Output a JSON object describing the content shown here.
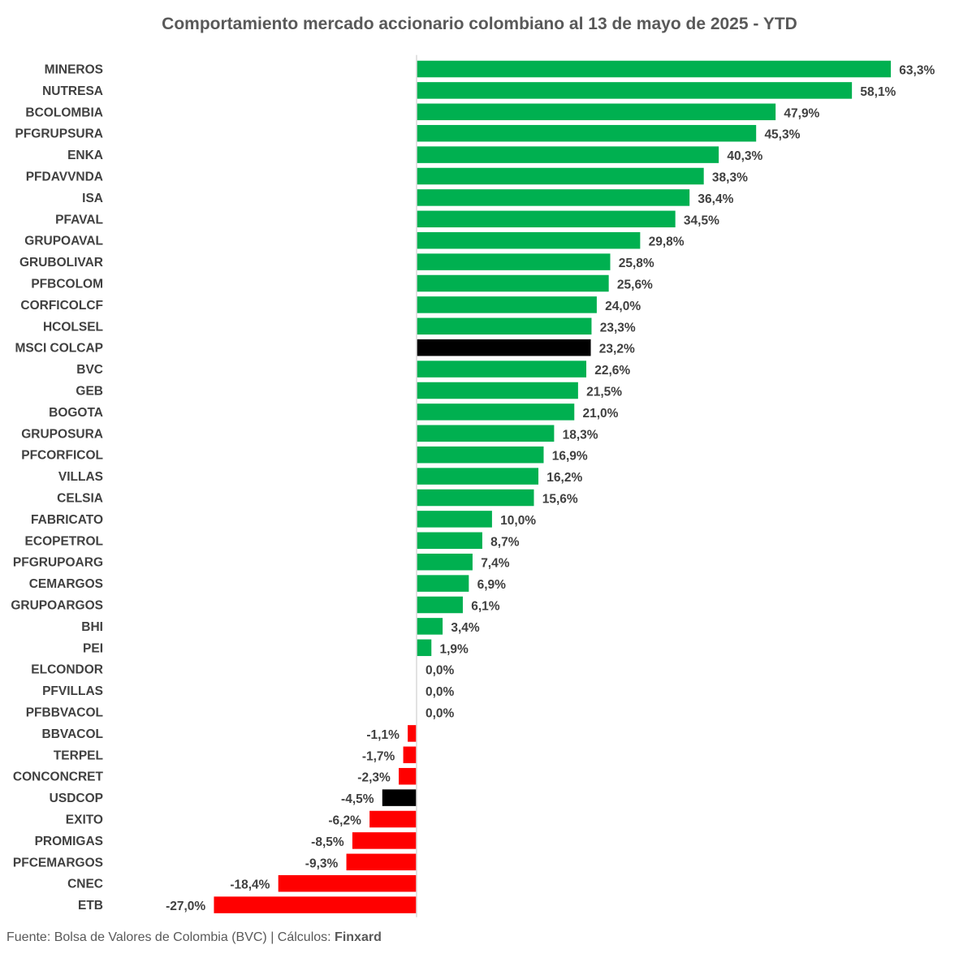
{
  "chart_data": {
    "type": "bar",
    "orientation": "horizontal",
    "title": "Comportamiento mercado accionario colombiano  al 13 de mayo de 2025 - YTD",
    "xlabel": "",
    "ylabel": "",
    "unit": "%",
    "grid": false,
    "legend": "none",
    "xlim": [
      -27.0,
      63.3
    ],
    "categories": [
      "MINEROS",
      "NUTRESA",
      "BCOLOMBIA",
      "PFGRUPSURA",
      "ENKA",
      "PFDAVVNDA",
      "ISA",
      "PFAVAL",
      "GRUPOAVAL",
      "GRUBOLIVAR",
      "PFBCOLOM",
      "CORFICOLCF",
      "HCOLSEL",
      "MSCI COLCAP",
      "BVC",
      "GEB",
      "BOGOTA",
      "GRUPOSURA",
      "PFCORFICOL",
      "VILLAS",
      "CELSIA",
      "FABRICATO",
      "ECOPETROL",
      "PFGRUPOARG",
      "CEMARGOS",
      "GRUPOARGOS",
      "BHI",
      "PEI",
      "ELCONDOR",
      "PFVILLAS",
      "PFBBVACOL",
      "BBVACOL",
      "TERPEL",
      "CONCONCRET",
      "USDCOP",
      "EXITO",
      "PROMIGAS",
      "PFCEMARGOS",
      "CNEC",
      "ETB"
    ],
    "values": [
      63.3,
      58.1,
      47.9,
      45.3,
      40.3,
      38.3,
      36.4,
      34.5,
      29.8,
      25.8,
      25.6,
      24.0,
      23.3,
      23.2,
      22.6,
      21.5,
      21.0,
      18.3,
      16.9,
      16.2,
      15.6,
      10.0,
      8.7,
      7.4,
      6.9,
      6.1,
      3.4,
      1.9,
      0.0,
      0.0,
      0.0,
      -1.1,
      -1.7,
      -2.3,
      -4.5,
      -6.2,
      -8.5,
      -9.3,
      -18.4,
      -27.0
    ],
    "value_labels": [
      "63,3%",
      "58,1%",
      "47,9%",
      "45,3%",
      "40,3%",
      "38,3%",
      "36,4%",
      "34,5%",
      "29,8%",
      "25,8%",
      "25,6%",
      "24,0%",
      "23,3%",
      "23,2%",
      "22,6%",
      "21,5%",
      "21,0%",
      "18,3%",
      "16,9%",
      "16,2%",
      "15,6%",
      "10,0%",
      "8,7%",
      "7,4%",
      "6,9%",
      "6,1%",
      "3,4%",
      "1,9%",
      "0,0%",
      "0,0%",
      "0,0%",
      "-1,1%",
      "-1,7%",
      "-2,3%",
      "-4,5%",
      "-6,2%",
      "-8,5%",
      "-9,3%",
      "-18,4%",
      "-27,0%"
    ],
    "highlighted": [
      "MSCI COLCAP",
      "USDCOP"
    ],
    "colors": {
      "positive": "#00B050",
      "negative": "#FF0000",
      "highlight": "#000000",
      "axis": "#D9D9D9",
      "text": "#404040"
    }
  },
  "footer": {
    "prefix": "Fuente: Bolsa de Valores de Colombia (BVC) | Cálculos: ",
    "brand": "Finxard"
  }
}
